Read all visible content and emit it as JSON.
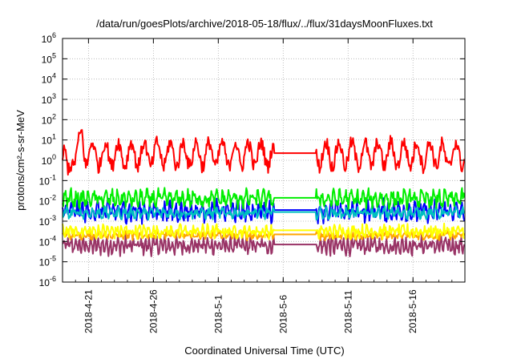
{
  "chart_data": {
    "type": "line",
    "title": "/data/run/goesPlots/archive/2018-05-18/flux/../flux/31daysMoonFluxes.txt",
    "xlabel": "Coordinated Universal Time (UTC)",
    "ylabel": "protons/cm²-s-sr-MeV",
    "yscale": "log",
    "ylim_exponent": [
      -6,
      6
    ],
    "y_ticks": [
      {
        "base": "10",
        "exp": "-6"
      },
      {
        "base": "10",
        "exp": "-5"
      },
      {
        "base": "10",
        "exp": "-4"
      },
      {
        "base": "10",
        "exp": "-3"
      },
      {
        "base": "10",
        "exp": "-2"
      },
      {
        "base": "10",
        "exp": "-1"
      },
      {
        "base": "10",
        "exp": "0"
      },
      {
        "base": "10",
        "exp": "1"
      },
      {
        "base": "10",
        "exp": "2"
      },
      {
        "base": "10",
        "exp": "3"
      },
      {
        "base": "10",
        "exp": "4"
      },
      {
        "base": "10",
        "exp": "5"
      },
      {
        "base": "10",
        "exp": "6"
      }
    ],
    "xlim_days": [
      0,
      31
    ],
    "x_ticks": [
      {
        "label": "2018-4-21",
        "day": 2
      },
      {
        "label": "2018-4-26",
        "day": 7
      },
      {
        "label": "2018-5-1",
        "day": 12
      },
      {
        "label": "2018-5-6",
        "day": 17
      },
      {
        "label": "2018-5-11",
        "day": 22
      },
      {
        "label": "2018-5-16",
        "day": 27
      }
    ],
    "grid": true,
    "series": [
      {
        "color": "#ff0000",
        "base_log": 0.3,
        "var": 0.6,
        "period": 1.0,
        "noise": 0.35,
        "spikes": [
          [
            0.4,
            1.5,
            -1.2
          ],
          [
            1.5,
            1.2,
            0.9
          ],
          [
            17.0,
            1.0,
            0.8
          ],
          [
            29.5,
            1.5,
            -0.4
          ]
        ]
      },
      {
        "color": "#00ee00",
        "base_log": -1.9,
        "var": 0.25,
        "period": 0.45,
        "noise": 0.3,
        "spikes": []
      },
      {
        "color": "#00c0c0",
        "base_log": -2.6,
        "var": 0.15,
        "period": 0.5,
        "noise": 0.2,
        "spikes": []
      },
      {
        "color": "#0000ff",
        "base_log": -2.5,
        "var": 0.3,
        "period": 0.4,
        "noise": 0.35,
        "spikes": []
      },
      {
        "color": "#ffff00",
        "base_log": -3.5,
        "var": 0.15,
        "period": 0.35,
        "noise": 0.25,
        "spikes": []
      },
      {
        "color": "#ffa500",
        "base_log": -3.7,
        "var": 0.1,
        "period": 0.4,
        "noise": 0.15,
        "spikes": []
      },
      {
        "color": "#993366",
        "base_log": -4.2,
        "var": 0.25,
        "period": 0.3,
        "noise": 0.3,
        "spikes": []
      }
    ],
    "gap_days": [
      16.3,
      19.5
    ]
  }
}
